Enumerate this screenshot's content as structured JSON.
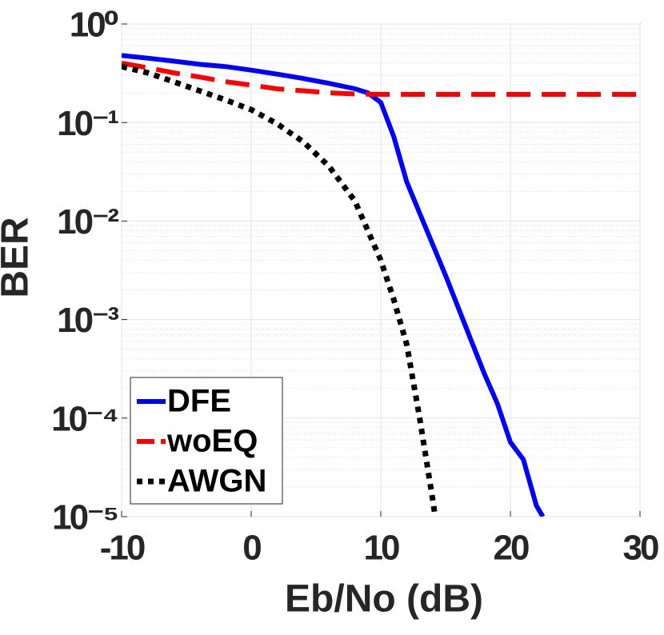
{
  "chart_data": {
    "type": "line",
    "xlabel": "Eb/No (dB)",
    "ylabel": "BER",
    "yscale": "log",
    "grid": true,
    "legend": "lower left",
    "xlim": [
      -10,
      30
    ],
    "xticks": [
      -10,
      0,
      10,
      20,
      30
    ],
    "ylim": [
      1e-05,
      1
    ],
    "yticks": [
      {
        "value": 1,
        "label": "10⁰"
      },
      {
        "value": 0.1,
        "label": "10⁻¹"
      },
      {
        "value": 0.01,
        "label": "10⁻²"
      },
      {
        "value": 0.001,
        "label": "10⁻³"
      },
      {
        "value": 0.0001,
        "label": "10⁻⁴"
      },
      {
        "value": 1e-05,
        "label": "10⁻⁵"
      }
    ],
    "series": [
      {
        "name": "DFE",
        "color": "#0000ff",
        "style": "solid",
        "x": [
          -10,
          -8,
          -6,
          -4,
          -2,
          0,
          2,
          4,
          6,
          8,
          9,
          10,
          11,
          12,
          13,
          14,
          15,
          16,
          17,
          18,
          19,
          20,
          21,
          22,
          22.5
        ],
        "values": [
          0.48,
          0.45,
          0.42,
          0.39,
          0.37,
          0.34,
          0.31,
          0.28,
          0.25,
          0.22,
          0.2,
          0.16,
          0.072,
          0.025,
          0.012,
          0.0058,
          0.0028,
          0.0013,
          0.0006,
          0.00028,
          0.00014,
          5.7e-05,
          3.8e-05,
          1.3e-05,
          1e-05
        ]
      },
      {
        "name": "woEQ",
        "color": "#ff0000",
        "style": "dashed",
        "x": [
          -10,
          -8,
          -6,
          -4,
          -2,
          0,
          2,
          4,
          6,
          8,
          10,
          15,
          20,
          25,
          30
        ],
        "values": [
          0.4,
          0.36,
          0.32,
          0.29,
          0.26,
          0.24,
          0.22,
          0.21,
          0.2,
          0.195,
          0.193,
          0.193,
          0.193,
          0.193,
          0.193
        ]
      },
      {
        "name": "AWGN",
        "color": "#000000",
        "style": "dotted",
        "x": [
          -10,
          -8,
          -6,
          -4,
          -2,
          0,
          2,
          4,
          6,
          8,
          10,
          11,
          12,
          13,
          14,
          14.2
        ],
        "values": [
          0.37,
          0.32,
          0.26,
          0.21,
          0.17,
          0.135,
          0.097,
          0.064,
          0.036,
          0.016,
          0.004,
          0.0016,
          0.00056,
          0.0001,
          1.5e-05,
          1e-05
        ]
      }
    ]
  }
}
